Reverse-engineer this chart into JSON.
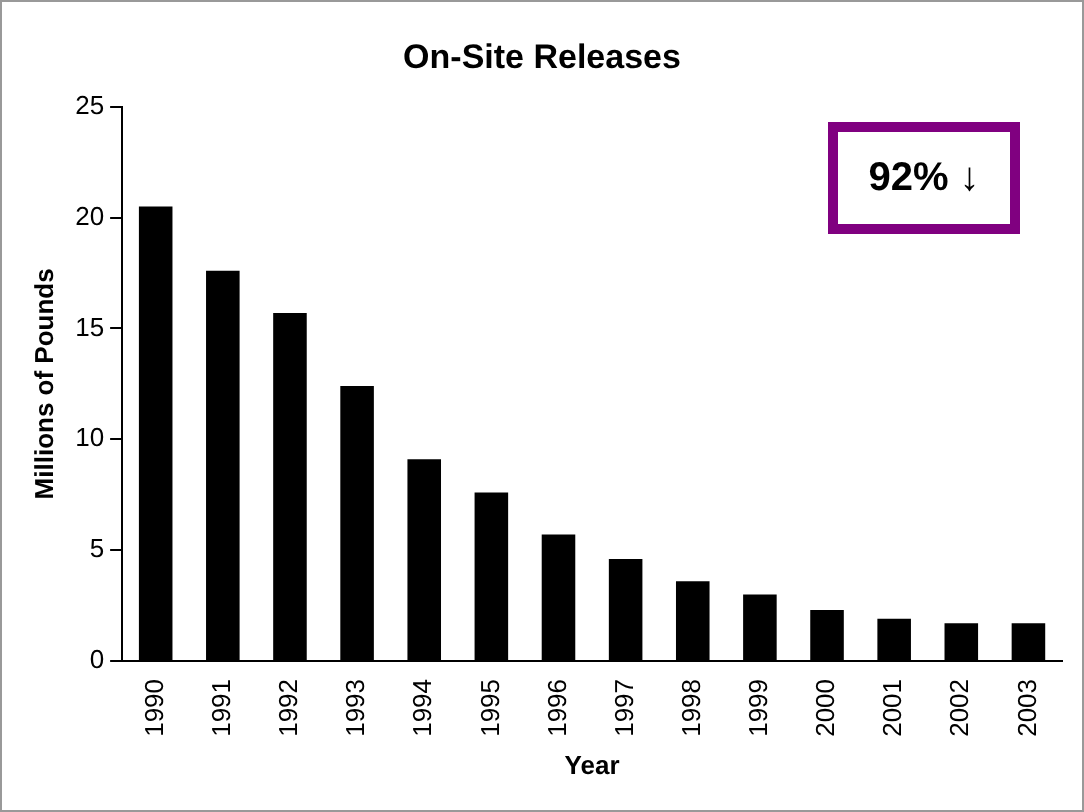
{
  "chart_data": {
    "type": "bar",
    "title": "On-Site Releases",
    "xlabel": "Year",
    "ylabel": "Millions of Pounds",
    "categories": [
      "1990",
      "1991",
      "1992",
      "1993",
      "1994",
      "1995",
      "1996",
      "1997",
      "1998",
      "1999",
      "2000",
      "2001",
      "2002",
      "2003"
    ],
    "values": [
      20.5,
      17.6,
      15.7,
      12.4,
      9.1,
      7.6,
      5.7,
      4.6,
      3.6,
      3.0,
      2.3,
      1.9,
      1.7,
      1.7
    ],
    "color": "#000000",
    "ylim": [
      0,
      25
    ],
    "yticks": [
      0,
      5,
      10,
      15,
      20,
      25
    ],
    "grid": false,
    "legend": false,
    "annotations": [
      "92% ↓"
    ]
  }
}
